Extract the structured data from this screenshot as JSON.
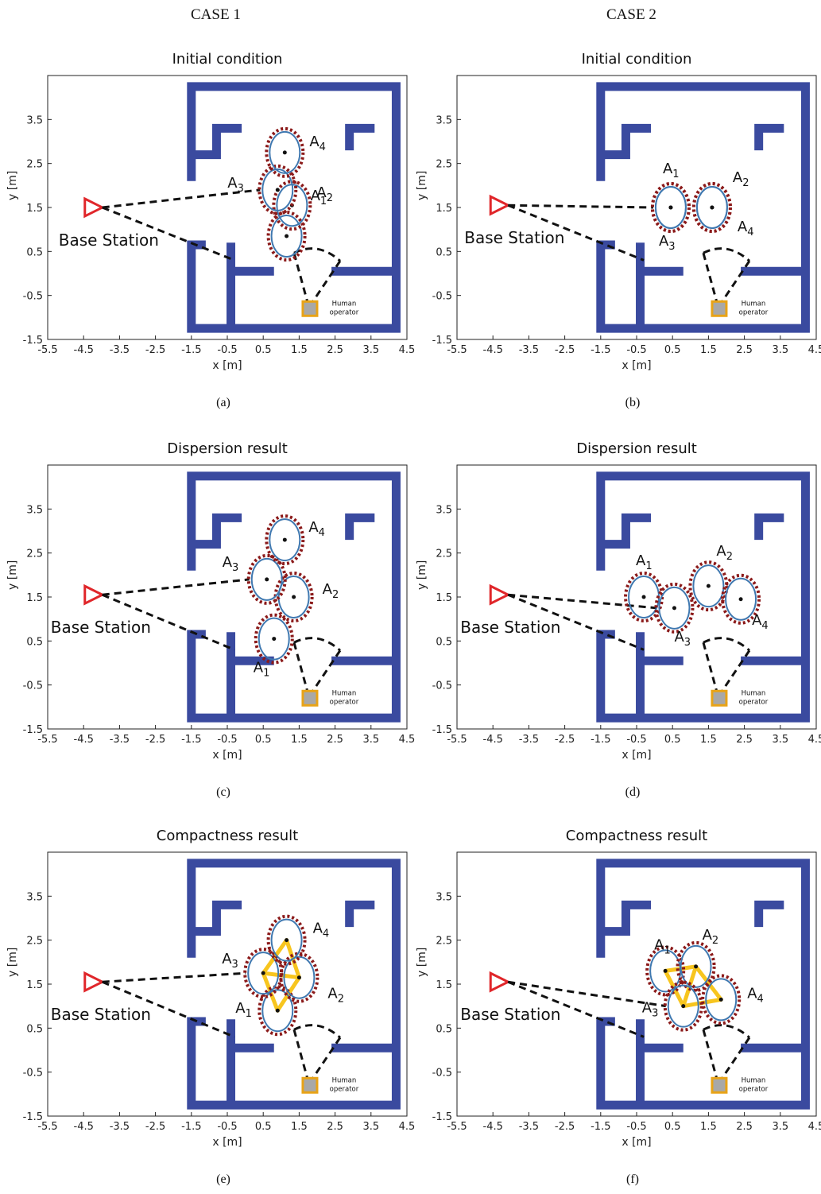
{
  "headers": {
    "case1": "CASE 1",
    "case2": "CASE 2"
  },
  "colors": {
    "wall": "#3a4a9f",
    "agent_outline": "#3f78b0",
    "dashed_ring": "#8b1a1a",
    "base_station": "#e0262a",
    "operator_fill": "#a8a8a8",
    "operator_border": "#e8a317",
    "link": "#f7c51e"
  },
  "labels": {
    "x_axis": "x [m]",
    "y_axis": "y [m]",
    "base_station": "Base Station",
    "operator_line1": "Human",
    "operator_line2": "operator",
    "agent_prefix": "A"
  },
  "chart_data": [
    {
      "type": "scatter",
      "panel": "a",
      "caption": "(a)",
      "title": "Initial condition",
      "xlim": [
        -5.5,
        4.5
      ],
      "ylim": [
        -1.5,
        4.5
      ],
      "xticks": [
        -5.5,
        -4.5,
        -3.5,
        -2.5,
        -1.5,
        -0.5,
        0.5,
        1.5,
        2.5,
        3.5,
        4.5
      ],
      "yticks": [
        -1.5,
        -0.5,
        0.5,
        1.5,
        2.5,
        3.5
      ],
      "base_station": [
        -4.2,
        1.5
      ],
      "operator": [
        1.8,
        -0.8
      ],
      "agents": [
        {
          "id": "1",
          "x": 1.15,
          "y": 0.85
        },
        {
          "id": "2",
          "x": 1.3,
          "y": 1.55
        },
        {
          "id": "3",
          "x": 0.9,
          "y": 1.9
        },
        {
          "id": "4",
          "x": 1.1,
          "y": 2.75
        }
      ],
      "links": []
    },
    {
      "type": "scatter",
      "panel": "b",
      "caption": "(b)",
      "title": "Initial condition",
      "xlim": [
        -5.5,
        4.5
      ],
      "ylim": [
        -1.5,
        4.5
      ],
      "xticks": [
        -5.5,
        -4.5,
        -3.5,
        -2.5,
        -1.5,
        -0.5,
        0.5,
        1.5,
        2.5,
        3.5,
        4.5
      ],
      "yticks": [
        -1.5,
        -0.5,
        0.5,
        1.5,
        2.5,
        3.5
      ],
      "base_station": [
        -4.3,
        1.55
      ],
      "operator": [
        1.8,
        -0.8
      ],
      "agents": [
        {
          "id": "1",
          "x": 0.45,
          "y": 1.5
        },
        {
          "id": "2",
          "x": 1.6,
          "y": 1.5
        },
        {
          "id": "3",
          "x": 0.45,
          "y": 1.5
        },
        {
          "id": "4",
          "x": 1.6,
          "y": 1.5
        }
      ],
      "links": []
    },
    {
      "type": "scatter",
      "panel": "c",
      "caption": "(c)",
      "title": "Dispersion result",
      "xlim": [
        -5.5,
        4.5
      ],
      "ylim": [
        -1.5,
        4.5
      ],
      "xticks": [
        -5.5,
        -4.5,
        -3.5,
        -2.5,
        -1.5,
        -0.5,
        0.5,
        1.5,
        2.5,
        3.5,
        4.5
      ],
      "yticks": [
        -1.5,
        -0.5,
        0.5,
        1.5,
        2.5,
        3.5
      ],
      "base_station": [
        -4.2,
        1.55
      ],
      "operator": [
        1.8,
        -0.8
      ],
      "agents": [
        {
          "id": "1",
          "x": 0.8,
          "y": 0.55
        },
        {
          "id": "2",
          "x": 1.35,
          "y": 1.5
        },
        {
          "id": "3",
          "x": 0.6,
          "y": 1.9
        },
        {
          "id": "4",
          "x": 1.1,
          "y": 2.8
        }
      ],
      "links": []
    },
    {
      "type": "scatter",
      "panel": "d",
      "caption": "(d)",
      "title": "Dispersion result",
      "xlim": [
        -5.5,
        4.5
      ],
      "ylim": [
        -1.5,
        4.5
      ],
      "xticks": [
        -5.5,
        -4.5,
        -3.5,
        -2.5,
        -1.5,
        -0.5,
        0.5,
        1.5,
        2.5,
        3.5,
        4.5
      ],
      "yticks": [
        -1.5,
        -0.5,
        0.5,
        1.5,
        2.5,
        3.5
      ],
      "base_station": [
        -4.3,
        1.55
      ],
      "operator": [
        1.8,
        -0.8
      ],
      "agents": [
        {
          "id": "1",
          "x": -0.3,
          "y": 1.5
        },
        {
          "id": "2",
          "x": 1.5,
          "y": 1.75
        },
        {
          "id": "3",
          "x": 0.55,
          "y": 1.25
        },
        {
          "id": "4",
          "x": 2.4,
          "y": 1.45
        }
      ],
      "links": []
    },
    {
      "type": "scatter",
      "panel": "e",
      "caption": "(e)",
      "title": "Compactness result",
      "xlim": [
        -5.5,
        4.5
      ],
      "ylim": [
        -1.5,
        4.5
      ],
      "xticks": [
        -5.5,
        -4.5,
        -3.5,
        -2.5,
        -1.5,
        -0.5,
        0.5,
        1.5,
        2.5,
        3.5,
        4.5
      ],
      "yticks": [
        -1.5,
        -0.5,
        0.5,
        1.5,
        2.5,
        3.5
      ],
      "base_station": [
        -4.2,
        1.55
      ],
      "operator": [
        1.8,
        -0.8
      ],
      "agents": [
        {
          "id": "1",
          "x": 0.9,
          "y": 0.9
        },
        {
          "id": "2",
          "x": 1.5,
          "y": 1.65
        },
        {
          "id": "3",
          "x": 0.5,
          "y": 1.75
        },
        {
          "id": "4",
          "x": 1.15,
          "y": 2.5
        }
      ],
      "links": [
        [
          0,
          1
        ],
        [
          0,
          2
        ],
        [
          1,
          2
        ],
        [
          1,
          3
        ],
        [
          2,
          3
        ]
      ]
    },
    {
      "type": "scatter",
      "panel": "f",
      "caption": "(f)",
      "title": "Compactness result",
      "xlim": [
        -5.5,
        4.5
      ],
      "ylim": [
        -1.5,
        4.5
      ],
      "xticks": [
        -5.5,
        -4.5,
        -3.5,
        -2.5,
        -1.5,
        -0.5,
        0.5,
        1.5,
        2.5,
        3.5,
        4.5
      ],
      "yticks": [
        -1.5,
        -0.5,
        0.5,
        1.5,
        2.5,
        3.5
      ],
      "base_station": [
        -4.3,
        1.55
      ],
      "operator": [
        1.8,
        -0.8
      ],
      "agents": [
        {
          "id": "1",
          "x": 0.3,
          "y": 1.8
        },
        {
          "id": "2",
          "x": 1.15,
          "y": 1.9
        },
        {
          "id": "3",
          "x": 0.8,
          "y": 1.0
        },
        {
          "id": "4",
          "x": 1.85,
          "y": 1.15
        }
      ],
      "links": [
        [
          0,
          1
        ],
        [
          0,
          2
        ],
        [
          1,
          2
        ],
        [
          1,
          3
        ],
        [
          2,
          3
        ]
      ]
    }
  ]
}
